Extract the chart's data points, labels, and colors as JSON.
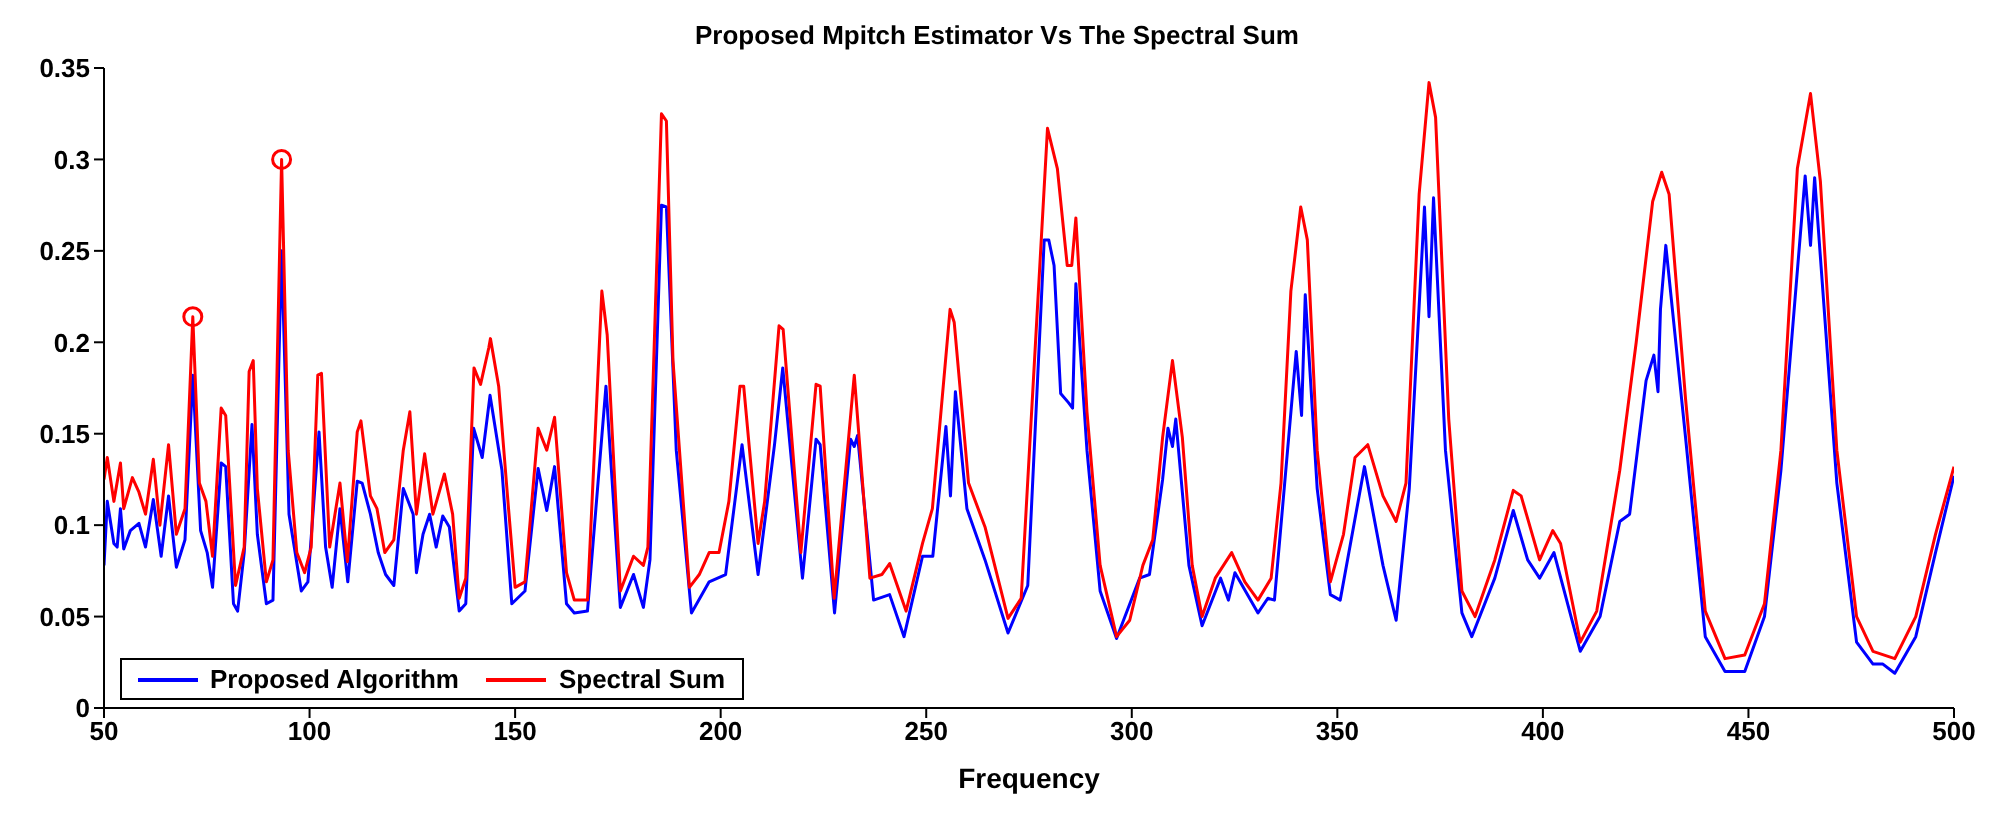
{
  "chart_data": {
    "type": "line",
    "title": "Proposed Mpitch Estimator Vs The Spectral Sum",
    "xlabel": "Frequency",
    "xlim": [
      50,
      500
    ],
    "xticks": [
      50,
      100,
      150,
      200,
      250,
      300,
      350,
      400,
      450,
      500
    ],
    "ylim": [
      0,
      0.35
    ],
    "yticks": [
      0,
      0.05,
      0.1,
      0.15,
      0.2,
      0.25,
      0.3,
      0.35
    ],
    "grid": false,
    "legend": "bottom left",
    "line_style": "solid",
    "series": [
      {
        "name": "Proposed Algorithm",
        "color": "#0000ff",
        "x": [
          50,
          50.8,
          52.4,
          53.2,
          54,
          54.8,
          56.4,
          58.5,
          60.1,
          62,
          63.9,
          65.7,
          67.6,
          69.7,
          71.6,
          73.5,
          75.1,
          76.4,
          78.5,
          79.6,
          81.5,
          82.5,
          84.1,
          86,
          87.3,
          89.5,
          91.1,
          93.2,
          95,
          98,
          99.6,
          102.3,
          103.9,
          105.5,
          107.4,
          109.3,
          111.6,
          112.8,
          114.8,
          116.7,
          118.5,
          120.5,
          122.8,
          125.2,
          126,
          127.6,
          129.2,
          130.8,
          132.4,
          134,
          136.4,
          138,
          139.9,
          142,
          143.9,
          146.8,
          149.2,
          152.4,
          155.6,
          157.7,
          159.6,
          162.5,
          164.4,
          167.6,
          172.1,
          175.6,
          178.8,
          181.2,
          182.8,
          185.6,
          186.8,
          189.2,
          192.9,
          197.2,
          201.2,
          205.2,
          209.1,
          213.1,
          215.1,
          219.9,
          223.2,
          224.2,
          227.7,
          231.6,
          232.5,
          233.3,
          237.2,
          241.1,
          244.6,
          249.1,
          251.6,
          254.8,
          255.9,
          257.1,
          259.9,
          264.3,
          269.9,
          274.7,
          278.7,
          279.8,
          281.1,
          282.7,
          284.6,
          285.6,
          286.4,
          289.1,
          292.3,
          296.3,
          301.9,
          304.3,
          307.5,
          308.8,
          309.9,
          310.7,
          313.9,
          317.1,
          321.6,
          323.5,
          325.1,
          330.7,
          333.1,
          334.7,
          340,
          341.3,
          342.2,
          345.1,
          348.3,
          350.7,
          356.6,
          361.1,
          364.3,
          367.5,
          371.2,
          372.3,
          373.4,
          376.3,
          380.3,
          382.7,
          388.3,
          392.8,
          396.3,
          399.2,
          402.7,
          409.1,
          413.9,
          418.7,
          421.1,
          425.1,
          427,
          428,
          428.6,
          429.9,
          434.7,
          439.5,
          444.3,
          449.1,
          453.9,
          457.9,
          463.8,
          465.1,
          466.1,
          471.5,
          476.3,
          480.3,
          482.7,
          485.6,
          490.7,
          495.5,
          500
        ],
        "values": [
          0.078,
          0.113,
          0.09,
          0.088,
          0.109,
          0.087,
          0.097,
          0.101,
          0.088,
          0.114,
          0.083,
          0.116,
          0.077,
          0.092,
          0.182,
          0.097,
          0.085,
          0.066,
          0.134,
          0.132,
          0.057,
          0.053,
          0.085,
          0.155,
          0.095,
          0.057,
          0.059,
          0.25,
          0.106,
          0.064,
          0.069,
          0.151,
          0.088,
          0.066,
          0.109,
          0.069,
          0.124,
          0.123,
          0.106,
          0.085,
          0.073,
          0.067,
          0.12,
          0.106,
          0.074,
          0.095,
          0.106,
          0.088,
          0.105,
          0.099,
          0.053,
          0.057,
          0.153,
          0.137,
          0.171,
          0.13,
          0.057,
          0.064,
          0.131,
          0.108,
          0.132,
          0.057,
          0.052,
          0.053,
          0.176,
          0.055,
          0.073,
          0.055,
          0.081,
          0.275,
          0.274,
          0.141,
          0.052,
          0.069,
          0.073,
          0.144,
          0.073,
          0.144,
          0.186,
          0.071,
          0.147,
          0.144,
          0.052,
          0.147,
          0.143,
          0.149,
          0.059,
          0.062,
          0.039,
          0.083,
          0.083,
          0.154,
          0.116,
          0.173,
          0.109,
          0.081,
          0.041,
          0.067,
          0.256,
          0.256,
          0.242,
          0.172,
          0.167,
          0.164,
          0.232,
          0.141,
          0.064,
          0.038,
          0.071,
          0.073,
          0.125,
          0.153,
          0.143,
          0.158,
          0.078,
          0.045,
          0.071,
          0.059,
          0.074,
          0.052,
          0.06,
          0.059,
          0.195,
          0.16,
          0.226,
          0.12,
          0.062,
          0.059,
          0.132,
          0.078,
          0.048,
          0.12,
          0.274,
          0.214,
          0.279,
          0.141,
          0.052,
          0.039,
          0.071,
          0.108,
          0.081,
          0.071,
          0.085,
          0.031,
          0.05,
          0.102,
          0.106,
          0.179,
          0.193,
          0.173,
          0.218,
          0.253,
          0.148,
          0.039,
          0.02,
          0.02,
          0.05,
          0.13,
          0.291,
          0.253,
          0.29,
          0.123,
          0.036,
          0.024,
          0.024,
          0.019,
          0.039,
          0.085,
          0.127
        ]
      },
      {
        "name": "Spectral Sum",
        "color": "#ff0000",
        "x": [
          50,
          50.8,
          52.4,
          54,
          54.8,
          56.9,
          58.5,
          60.1,
          62,
          63.6,
          65.7,
          67.6,
          69.7,
          71.6,
          73.2,
          74.8,
          76.4,
          78.5,
          79.6,
          82,
          84.1,
          85.3,
          86.3,
          87.3,
          89.5,
          91.1,
          93.2,
          94.8,
          96.9,
          98.8,
          100.4,
          102,
          102.9,
          104.9,
          107.4,
          109.2,
          111.6,
          112.5,
          114.8,
          116.4,
          118.3,
          120.5,
          122.8,
          124.4,
          126,
          128,
          130,
          132.8,
          134.8,
          136.4,
          138,
          140,
          141.6,
          143.6,
          144,
          146,
          148.4,
          150,
          152.4,
          155.6,
          157.7,
          159.6,
          162.5,
          164.4,
          167.6,
          171.1,
          172.4,
          175.6,
          178.8,
          181.2,
          182.3,
          185.6,
          186.8,
          188.4,
          192.4,
          194.8,
          197.2,
          199.6,
          202,
          204.7,
          205.6,
          209.1,
          210.7,
          214.2,
          215.2,
          219.5,
          223.2,
          224.2,
          227.6,
          232.5,
          236.3,
          239.2,
          241.1,
          245.1,
          249.1,
          251.5,
          255.8,
          256.8,
          260.3,
          264.3,
          269.9,
          273.1,
          279.5,
          281.9,
          284.3,
          285.4,
          286.4,
          289.1,
          292.3,
          296.3,
          299.5,
          302.7,
          305.1,
          307.5,
          309.9,
          312.3,
          314.7,
          317.1,
          320.3,
          324.3,
          327.5,
          330.7,
          333.9,
          336.3,
          338.7,
          341.1,
          342.7,
          345.1,
          348.3,
          351.5,
          354.3,
          357.4,
          361.1,
          364.3,
          366.7,
          369.9,
          372.3,
          373.9,
          377.1,
          380.3,
          383.5,
          388.3,
          392.8,
          394.7,
          399.2,
          402.4,
          404.3,
          409.1,
          413.1,
          418.7,
          422.7,
          426.7,
          428.9,
          430.7,
          434.7,
          439.5,
          444.3,
          449.1,
          453.9,
          457.9,
          461.9,
          465.1,
          467.5,
          471.5,
          476.3,
          480.3,
          485.6,
          490.7,
          495.5,
          500
        ],
        "values": [
          0.125,
          0.137,
          0.113,
          0.134,
          0.109,
          0.126,
          0.118,
          0.106,
          0.136,
          0.1,
          0.144,
          0.095,
          0.109,
          0.214,
          0.123,
          0.113,
          0.083,
          0.164,
          0.16,
          0.067,
          0.088,
          0.184,
          0.19,
          0.12,
          0.069,
          0.081,
          0.3,
          0.141,
          0.085,
          0.074,
          0.088,
          0.182,
          0.183,
          0.088,
          0.123,
          0.08,
          0.151,
          0.157,
          0.116,
          0.109,
          0.085,
          0.092,
          0.141,
          0.162,
          0.106,
          0.139,
          0.106,
          0.128,
          0.106,
          0.06,
          0.071,
          0.186,
          0.177,
          0.197,
          0.202,
          0.176,
          0.109,
          0.066,
          0.069,
          0.153,
          0.141,
          0.159,
          0.074,
          0.059,
          0.059,
          0.228,
          0.204,
          0.064,
          0.083,
          0.078,
          0.088,
          0.325,
          0.321,
          0.19,
          0.066,
          0.073,
          0.085,
          0.085,
          0.113,
          0.176,
          0.176,
          0.09,
          0.113,
          0.209,
          0.207,
          0.085,
          0.177,
          0.176,
          0.06,
          0.182,
          0.071,
          0.073,
          0.079,
          0.053,
          0.09,
          0.109,
          0.218,
          0.211,
          0.123,
          0.099,
          0.049,
          0.06,
          0.317,
          0.295,
          0.242,
          0.242,
          0.268,
          0.162,
          0.078,
          0.039,
          0.048,
          0.078,
          0.092,
          0.148,
          0.19,
          0.148,
          0.078,
          0.05,
          0.071,
          0.085,
          0.069,
          0.059,
          0.071,
          0.123,
          0.228,
          0.274,
          0.256,
          0.141,
          0.069,
          0.095,
          0.137,
          0.144,
          0.116,
          0.102,
          0.123,
          0.281,
          0.342,
          0.323,
          0.158,
          0.064,
          0.05,
          0.081,
          0.119,
          0.116,
          0.081,
          0.097,
          0.09,
          0.036,
          0.053,
          0.13,
          0.2,
          0.277,
          0.293,
          0.281,
          0.169,
          0.053,
          0.027,
          0.029,
          0.057,
          0.141,
          0.295,
          0.336,
          0.288,
          0.141,
          0.05,
          0.031,
          0.027,
          0.05,
          0.095,
          0.132
        ]
      },
      {
        "type": "scatter",
        "marker": "circle",
        "color": "#ff0000",
        "x": [
          71.6,
          93.2
        ],
        "values": [
          0.214,
          0.3
        ]
      }
    ]
  }
}
